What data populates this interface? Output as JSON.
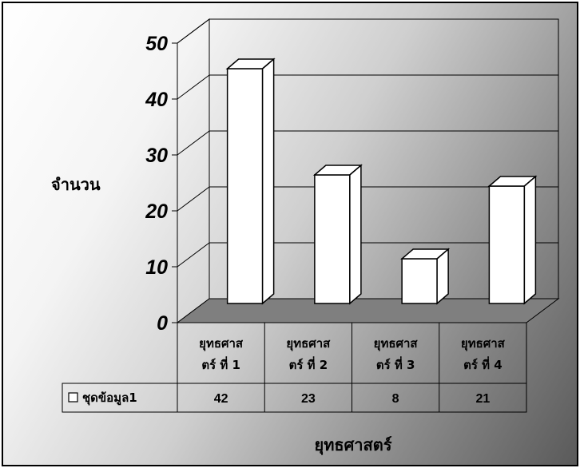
{
  "chart_data": {
    "type": "bar",
    "categories": [
      "ยุทธศาสตร์ ที่ 1",
      "ยุทธศาสตร์ ที่ 2",
      "ยุทธศาสตร์ ที่ 3",
      "ยุทธศาสตร์ ที่ 4"
    ],
    "category_lines": [
      [
        "ยุทธศาส",
        "ตร์ ที่ 1"
      ],
      [
        "ยุทธศาส",
        "ตร์ ที่ 2"
      ],
      [
        "ยุทธศาส",
        "ตร์ ที่ 3"
      ],
      [
        "ยุทธศาส",
        "ตร์ ที่ 4"
      ]
    ],
    "series": [
      {
        "name": "ชุดข้อมูล1",
        "values": [
          42,
          23,
          8,
          21
        ]
      }
    ],
    "value_labels": [
      "42",
      "23",
      "8",
      "21"
    ],
    "ylabel": "จำนวน",
    "xlabel": "ยุทธศาสตร์",
    "ylim": [
      0,
      50
    ],
    "yticks": [
      "0",
      "10",
      "20",
      "30",
      "40",
      "50"
    ],
    "grid": true,
    "legend": "data table below chart"
  }
}
